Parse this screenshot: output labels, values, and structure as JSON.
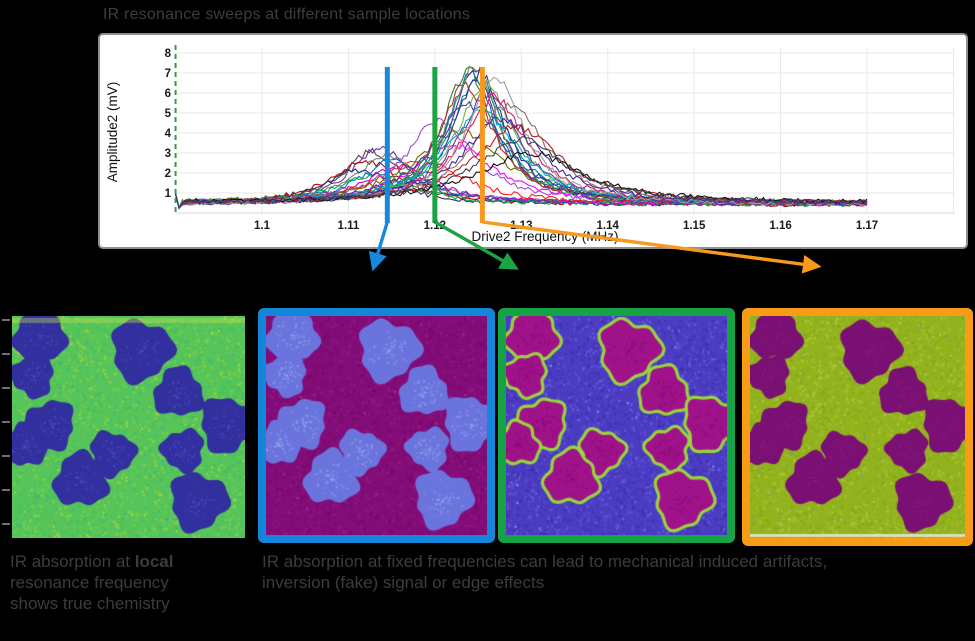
{
  "title": {
    "text": "IR resonance sweeps at different sample locations"
  },
  "chart_data": {
    "type": "line",
    "title": "IR resonance sweeps at different sample locations",
    "xlabel": "Drive2 Frequency (MHz)",
    "ylabel": "Amplitude2 (mV)",
    "xlim": [
      1.089,
      1.182
    ],
    "ylim": [
      0,
      8.4
    ],
    "grid": true,
    "x_ticks": [
      {
        "v": 1.1,
        "label": "1.1"
      },
      {
        "v": 1.11,
        "label": "1.11"
      },
      {
        "v": 1.12,
        "label": "1.12"
      },
      {
        "v": 1.13,
        "label": "1.13"
      },
      {
        "v": 1.14,
        "label": "1.14"
      },
      {
        "v": 1.15,
        "label": "1.15"
      },
      {
        "v": 1.16,
        "label": "1.16"
      },
      {
        "v": 1.17,
        "label": "1.17"
      }
    ],
    "x_grid_extra": [
      1.18
    ],
    "y_ticks": [
      1,
      2,
      3,
      4,
      5,
      6,
      7,
      8
    ],
    "data_range": [
      1.09,
      1.17
    ],
    "baseline_mV": 0.45,
    "axis_dashed_line": {
      "x": 1.09,
      "color": "#2f9e41"
    },
    "sweeps": [
      [
        1.1128,
        2.6,
        0.0042,
        "#4a4a4a"
      ],
      [
        1.1136,
        2.8,
        0.004,
        "#7030a0"
      ],
      [
        1.112,
        2.2,
        0.0048,
        "#c00000"
      ],
      [
        1.1144,
        2.5,
        0.0042,
        "#808080"
      ],
      [
        1.1112,
        1.7,
        0.005,
        "#1f3864"
      ],
      [
        1.115,
        2.1,
        0.0045,
        "#0070c0"
      ],
      [
        1.1132,
        1.5,
        0.0055,
        "#00b050"
      ],
      [
        1.1158,
        1.9,
        0.005,
        "#cc00cc"
      ],
      [
        1.1185,
        2.2,
        0.006,
        "#ff2020"
      ],
      [
        1.1205,
        4.1,
        0.0048,
        "#9a4fd8"
      ],
      [
        1.1222,
        2.9,
        0.0058,
        "#ff00ff"
      ],
      [
        1.1228,
        3.6,
        0.006,
        "#6b6b00"
      ],
      [
        1.1238,
        6.7,
        0.0036,
        "#2e7d32"
      ],
      [
        1.1242,
        6.4,
        0.0036,
        "#1565c0"
      ],
      [
        1.1246,
        6.8,
        0.0034,
        "#6a1b9a"
      ],
      [
        1.125,
        6.2,
        0.004,
        "#00897b"
      ],
      [
        1.1236,
        5.9,
        0.004,
        "#c62828"
      ],
      [
        1.1252,
        6.5,
        0.0036,
        "#283593"
      ],
      [
        1.1245,
        6.9,
        0.0035,
        "#43a047"
      ],
      [
        1.1258,
        6.0,
        0.004,
        "#7cb342"
      ],
      [
        1.1262,
        5.6,
        0.0042,
        "#5e35b1"
      ],
      [
        1.124,
        5.0,
        0.005,
        "#3949ab"
      ],
      [
        1.1255,
        4.6,
        0.005,
        "#00acc1"
      ],
      [
        1.1268,
        5.3,
        0.0045,
        "#d81b60"
      ],
      [
        1.127,
        6.4,
        0.004,
        "#9e9e9e"
      ],
      [
        1.1286,
        5.0,
        0.005,
        "#8d6e63"
      ],
      [
        1.1295,
        3.9,
        0.006,
        "#b71c1c"
      ],
      [
        1.131,
        2.5,
        0.0075,
        "#101010"
      ],
      [
        1.1278,
        4.3,
        0.0055,
        "#4527a0"
      ],
      [
        1.13,
        3.2,
        0.0065,
        "#37474f"
      ]
    ],
    "markers": [
      {
        "name": "blue-fixed-frequency",
        "freq": 1.1145,
        "color": "#1788dc"
      },
      {
        "name": "green-fixed-frequency",
        "freq": 1.12,
        "color": "#1ca342"
      },
      {
        "name": "orange-fixed-frequency",
        "freq": 1.1255,
        "color": "#f8991d"
      }
    ]
  },
  "arrows": [
    {
      "marker": 0,
      "to_image": 1
    },
    {
      "marker": 1,
      "to_image": 2
    },
    {
      "marker": 2,
      "to_image": 3
    }
  ],
  "blobs": [
    [
      0.12,
      0.085,
      0.062
    ],
    [
      0.555,
      0.155,
      0.072
    ],
    [
      0.09,
      0.27,
      0.05
    ],
    [
      0.715,
      0.345,
      0.058
    ],
    [
      0.925,
      0.49,
      0.065
    ],
    [
      0.165,
      0.49,
      0.058
    ],
    [
      0.055,
      0.585,
      0.05
    ],
    [
      0.43,
      0.62,
      0.053
    ],
    [
      0.735,
      0.605,
      0.05
    ],
    [
      0.295,
      0.74,
      0.063
    ],
    [
      0.8,
      0.835,
      0.068
    ]
  ],
  "images": [
    {
      "name": "local-resonance-map",
      "border": null,
      "bg": "#55c45a",
      "speckle": [
        "#6ecd4d",
        "#a8d93c",
        "#46bd66",
        "#7fd34a",
        "#3fb872"
      ],
      "rare": "#2fa3c8",
      "rare_n": 30,
      "blob": "#322f9e",
      "blob_speckle": "#4a4cc0",
      "edge": null,
      "top_band": "#c6e04a",
      "bottom_band": null
    },
    {
      "name": "fixed-frequency-blue-map",
      "border": "#1486da",
      "bg": "#830d78",
      "speckle": [
        "#93127f",
        "#6f0a63",
        "#9c1a8e",
        "#770b6c"
      ],
      "rare": "#a23d9a",
      "rare_n": 20,
      "blob": "#6b74dd",
      "blob_speckle": "#93a4ec",
      "edge": null,
      "top_band": null,
      "bottom_band": null
    },
    {
      "name": "fixed-frequency-green-map",
      "border": "#16a346",
      "bg": "#4b3cc3",
      "speckle": [
        "#5b50d2",
        "#4133ac",
        "#6f68e0",
        "#3b2da0"
      ],
      "rare": "#6fc8e0",
      "rare_n": 25,
      "blob": "#a0128a",
      "blob_speckle": "#860d74",
      "edge": "#9bdc38",
      "top_band": null,
      "bottom_band": null
    },
    {
      "name": "fixed-frequency-orange-map",
      "border": "#f89c15",
      "bg": "#93b31e",
      "speckle": [
        "#a3c22b",
        "#84a312",
        "#b7cd43",
        "#8aae25"
      ],
      "rare": "#45a8a0",
      "rare_n": 50,
      "blob": "#7a1073",
      "blob_speckle": "#8c1a80",
      "edge": null,
      "top_band": null,
      "bottom_band": "#e8e8da"
    }
  ],
  "captions": {
    "left": {
      "line1_prefix": "IR absorption at ",
      "line1_bold": "local",
      "line2": "resonance frequency",
      "line3": "shows true chemistry"
    },
    "right": {
      "line1": "IR absorption at fixed frequencies can lead to mechanical induced artifacts,",
      "line2": "inversion (fake) signal or edge effects"
    }
  }
}
